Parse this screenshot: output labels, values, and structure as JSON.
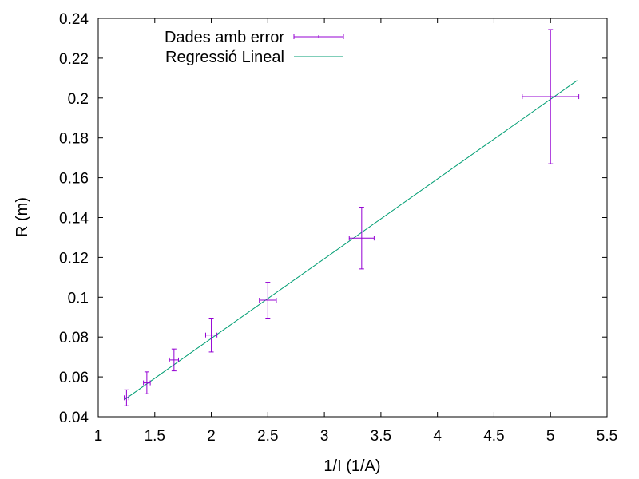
{
  "chart_data": {
    "type": "scatter",
    "xlabel": "1/I (1/A)",
    "ylabel": "R (m)",
    "xlim": [
      1,
      5.5
    ],
    "ylim": [
      0.04,
      0.24
    ],
    "x_ticks": [
      "1",
      "1.5",
      "2",
      "2.5",
      "3",
      "3.5",
      "4",
      "4.5",
      "5",
      "5.5"
    ],
    "y_ticks": [
      "0.04",
      "0.06",
      "0.08",
      "0.1",
      "0.12",
      "0.14",
      "0.16",
      "0.18",
      "0.2",
      "0.22",
      "0.24"
    ],
    "grid": false,
    "legend_position": "top-left",
    "series": [
      {
        "name": "Dades amb error",
        "kind": "errorbars",
        "color": "#9400d3",
        "points": [
          {
            "x": 1.25,
            "y": 0.0495,
            "x_err": 0.02,
            "y_err": 0.004
          },
          {
            "x": 1.43,
            "y": 0.057,
            "x_err": 0.03,
            "y_err": 0.0055
          },
          {
            "x": 1.67,
            "y": 0.0685,
            "x_err": 0.04,
            "y_err": 0.0055
          },
          {
            "x": 2.0,
            "y": 0.081,
            "x_err": 0.05,
            "y_err": 0.0085
          },
          {
            "x": 2.5,
            "y": 0.0985,
            "x_err": 0.075,
            "y_err": 0.009
          },
          {
            "x": 3.33,
            "y": 0.1297,
            "x_err": 0.11,
            "y_err": 0.0155
          },
          {
            "x": 5.0,
            "y": 0.2007,
            "x_err": 0.25,
            "y_err": 0.0337
          }
        ]
      },
      {
        "name": "Regressió Lineal",
        "kind": "line",
        "color": "#009e73",
        "x": [
          1.23,
          5.24
        ],
        "y": [
          0.0485,
          0.209
        ]
      }
    ]
  }
}
